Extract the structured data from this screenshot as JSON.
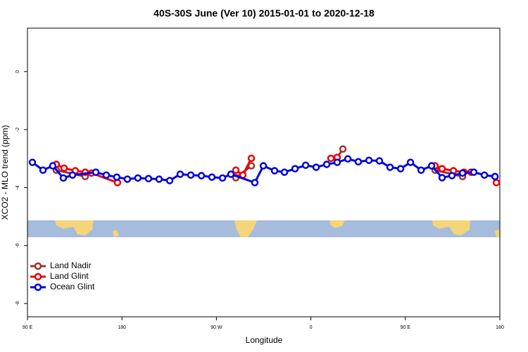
{
  "chart_data": {
    "type": "line",
    "title": "40S-30S June (Ver 10)   2015-01-01 to 2020-12-18",
    "x_label": "Longitude",
    "y_label": "XCO2 - MLO trend (ppm)",
    "xlim": [
      90,
      540
    ],
    "xticks": [
      {
        "value": 90,
        "label": "90 E"
      },
      {
        "value": 180,
        "label": "180"
      },
      {
        "value": 270,
        "label": "90 W"
      },
      {
        "value": 360,
        "label": "0"
      },
      {
        "value": 450,
        "label": "90 E"
      },
      {
        "value": 540,
        "label": "180"
      }
    ],
    "ylim": [
      -8.46,
      1.5
    ],
    "yticks": [
      0,
      -2,
      -4,
      -6,
      -8
    ],
    "legend": "bottomleft",
    "series": [
      {
        "name": "Land Nadir",
        "color": "#993333",
        "x": [
          117.5,
          145.0,
          null,
          288.5,
          303.3,
          null,
          385.1,
          390.5,
          null,
          478.3,
          504.5
        ],
        "values": [
          -3.4,
          -3.62,
          null,
          -3.66,
          -3.25,
          null,
          -2.96,
          -2.67,
          null,
          -3.4,
          -3.62
        ]
      },
      {
        "name": "Land Glint",
        "color": "#ee0000",
        "x": [
          117.5,
          124.9,
          135.6,
          145.0,
          151.0,
          175.8,
          null,
          288.5,
          295.2,
          303.3,
          null,
          379.1,
          385.1,
          null,
          478.3,
          485.0,
          495.8,
          505.8,
          512.5,
          null,
          536.7
        ],
        "values": [
          -3.2,
          -3.33,
          -3.42,
          -3.47,
          -3.5,
          -3.83,
          null,
          -3.4,
          -3.57,
          -2.99,
          null,
          -2.99,
          -2.96,
          null,
          -3.25,
          -3.35,
          -3.42,
          -3.47,
          -3.47,
          null,
          -3.83
        ]
      },
      {
        "name": "Ocean Glint",
        "color": "#0000dd",
        "x": [
          94.7,
          104.8,
          114.1,
          124.2,
          132.9,
          155.1,
          165.1,
          175.1,
          185.2,
          195.2,
          205.3,
          215.4,
          225.5,
          235.5,
          245.6,
          255.7,
          265.7,
          275.8,
          283.8,
          306.6,
          314.7,
          325.4,
          334.8,
          344.9,
          355.0,
          365.0,
          375.1,
          385.1,
          395.2,
          405.2,
          415.3,
          425.3,
          435.4,
          445.5,
          454.9,
          465.0,
          475.0,
          485.0,
          494.4,
          504.5,
          515.2,
          525.3,
          535.4
        ],
        "values": [
          -3.13,
          -3.4,
          -3.25,
          -3.67,
          -3.57,
          -3.47,
          -3.57,
          -3.64,
          -3.71,
          -3.67,
          -3.69,
          -3.71,
          -3.76,
          -3.54,
          -3.57,
          -3.59,
          -3.64,
          -3.67,
          -3.54,
          -3.83,
          -3.25,
          -3.42,
          -3.47,
          -3.35,
          -3.23,
          -3.3,
          -3.2,
          -3.13,
          -3.01,
          -3.11,
          -3.06,
          -3.08,
          -3.3,
          -3.35,
          -3.13,
          -3.4,
          -3.25,
          -3.66,
          -3.59,
          -3.5,
          -3.47,
          -3.57,
          -3.62
        ]
      }
    ]
  }
}
